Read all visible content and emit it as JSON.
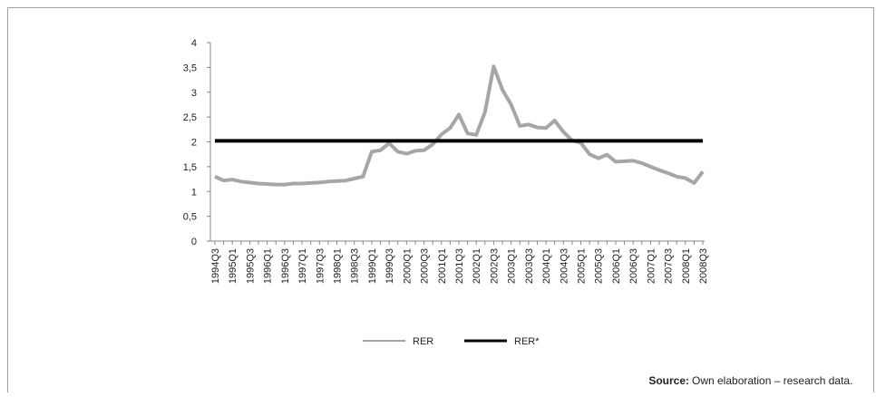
{
  "chart_data": {
    "type": "line",
    "categories": [
      "1994Q3",
      null,
      "1995Q1",
      null,
      "1995Q3",
      null,
      "1996Q1",
      null,
      "1996Q3",
      null,
      "1997Q1",
      null,
      "1997Q3",
      null,
      "1998Q1",
      null,
      "1998Q3",
      null,
      "1999Q1",
      null,
      "1999Q3",
      null,
      "2000Q1",
      null,
      "2000Q3",
      null,
      "2001Q1",
      null,
      "2001Q3",
      null,
      "2002Q1",
      null,
      "2002Q3",
      null,
      "2003Q1",
      null,
      "2003Q3",
      null,
      "2004Q1",
      null,
      "2004Q3",
      null,
      "2005Q1",
      null,
      "2005Q3",
      null,
      "2006Q1",
      null,
      "2006Q3",
      null,
      "2007Q1",
      null,
      "2007Q3",
      null,
      "2008Q1",
      null,
      "2008Q3"
    ],
    "series": [
      {
        "name": "RER",
        "color": "#a6a6a6",
        "values": [
          1.3,
          1.22,
          1.24,
          1.2,
          1.18,
          1.16,
          1.15,
          1.14,
          1.14,
          1.16,
          1.16,
          1.17,
          1.18,
          1.2,
          1.21,
          1.22,
          1.26,
          1.3,
          1.8,
          1.83,
          1.97,
          1.8,
          1.76,
          1.82,
          1.83,
          1.95,
          2.15,
          2.28,
          2.55,
          2.17,
          2.14,
          2.6,
          3.52,
          3.05,
          2.75,
          2.32,
          2.35,
          2.29,
          2.28,
          2.43,
          2.2,
          2.03,
          1.98,
          1.75,
          1.67,
          1.74,
          1.6,
          1.61,
          1.62,
          1.57,
          1.5,
          1.43,
          1.37,
          1.3,
          1.27,
          1.17,
          1.4
        ]
      },
      {
        "name": "RER*",
        "color": "#000000",
        "values": [
          2.02,
          2.02,
          2.02,
          2.02,
          2.02,
          2.02,
          2.02,
          2.02,
          2.02,
          2.02,
          2.02,
          2.02,
          2.02,
          2.02,
          2.02,
          2.02,
          2.02,
          2.02,
          2.02,
          2.02,
          2.02,
          2.02,
          2.02,
          2.02,
          2.02,
          2.02,
          2.02,
          2.02,
          2.02,
          2.02,
          2.02,
          2.02,
          2.02,
          2.02,
          2.02,
          2.02,
          2.02,
          2.02,
          2.02,
          2.02,
          2.02,
          2.02,
          2.02,
          2.02,
          2.02,
          2.02,
          2.02,
          2.02,
          2.02,
          2.02,
          2.02,
          2.02,
          2.02,
          2.02,
          2.02,
          2.02,
          2.02
        ]
      }
    ],
    "ylim": [
      0,
      4
    ],
    "yticks": [
      0,
      {
        "value": 0.5,
        "label": "0,5"
      },
      1,
      {
        "value": 1.5,
        "label": "1,5"
      },
      2,
      {
        "value": 2.5,
        "label": "2,5"
      },
      3,
      {
        "value": 3.5,
        "label": "3,5"
      },
      4
    ],
    "legend": "bottom",
    "source_label": "Source:",
    "source_text": "Own elaboration – research data."
  }
}
